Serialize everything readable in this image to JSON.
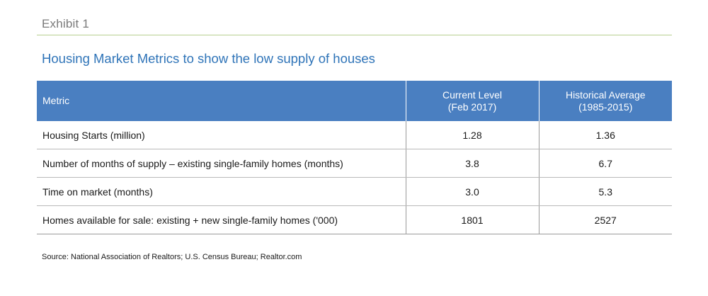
{
  "exhibit": {
    "label": "Exhibit 1",
    "title": "Housing Market Metrics to show the low supply of houses"
  },
  "table": {
    "headers": {
      "metric": "Metric",
      "current_line1": "Current Level",
      "current_line2": "(Feb 2017)",
      "historical_line1": "Historical Average",
      "historical_line2": "(1985-2015)"
    },
    "rows": [
      {
        "metric": "Housing Starts (million)",
        "current": "1.28",
        "historical": "1.36"
      },
      {
        "metric": "Number of months of supply – existing single-family homes (months)",
        "current": "3.8",
        "historical": "6.7"
      },
      {
        "metric": "Time on market (months)",
        "current": "3.0",
        "historical": "5.3"
      },
      {
        "metric": "Homes available for sale: existing + new single-family homes ('000)",
        "current": "1801",
        "historical": "2527"
      }
    ]
  },
  "source": "Source: National Association of Realtors; U.S. Census Bureau; Realtor.com",
  "colors": {
    "header_bg": "#4a7fc1",
    "title": "#2f74b8",
    "rule": "#b7cf8e"
  }
}
